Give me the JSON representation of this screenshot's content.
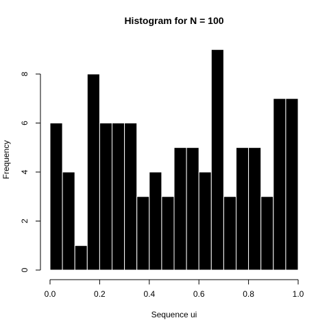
{
  "chart_data": {
    "type": "bar",
    "title": "Histogram for N = 100",
    "xlabel": "Sequence ui",
    "ylabel": "Frequency",
    "bin_edges": [
      0.0,
      0.05,
      0.1,
      0.15,
      0.2,
      0.25,
      0.3,
      0.35,
      0.4,
      0.45,
      0.5,
      0.55,
      0.6,
      0.65,
      0.7,
      0.75,
      0.8,
      0.85,
      0.9,
      0.95,
      1.0
    ],
    "values": [
      6,
      4,
      1,
      8,
      6,
      6,
      6,
      3,
      4,
      3,
      5,
      5,
      4,
      9,
      3,
      5,
      5,
      3,
      7,
      7
    ],
    "xlim": [
      0.0,
      1.0
    ],
    "ylim": [
      0,
      9
    ],
    "x_ticks": [
      "0.0",
      "0.2",
      "0.4",
      "0.6",
      "0.8",
      "1.0"
    ],
    "y_ticks": [
      "0",
      "2",
      "4",
      "6",
      "8"
    ],
    "grid": false,
    "legend": "none",
    "colors": {
      "bar_fill": "#000000",
      "bar_border": "#ffffff",
      "background": "#ffffff"
    }
  }
}
